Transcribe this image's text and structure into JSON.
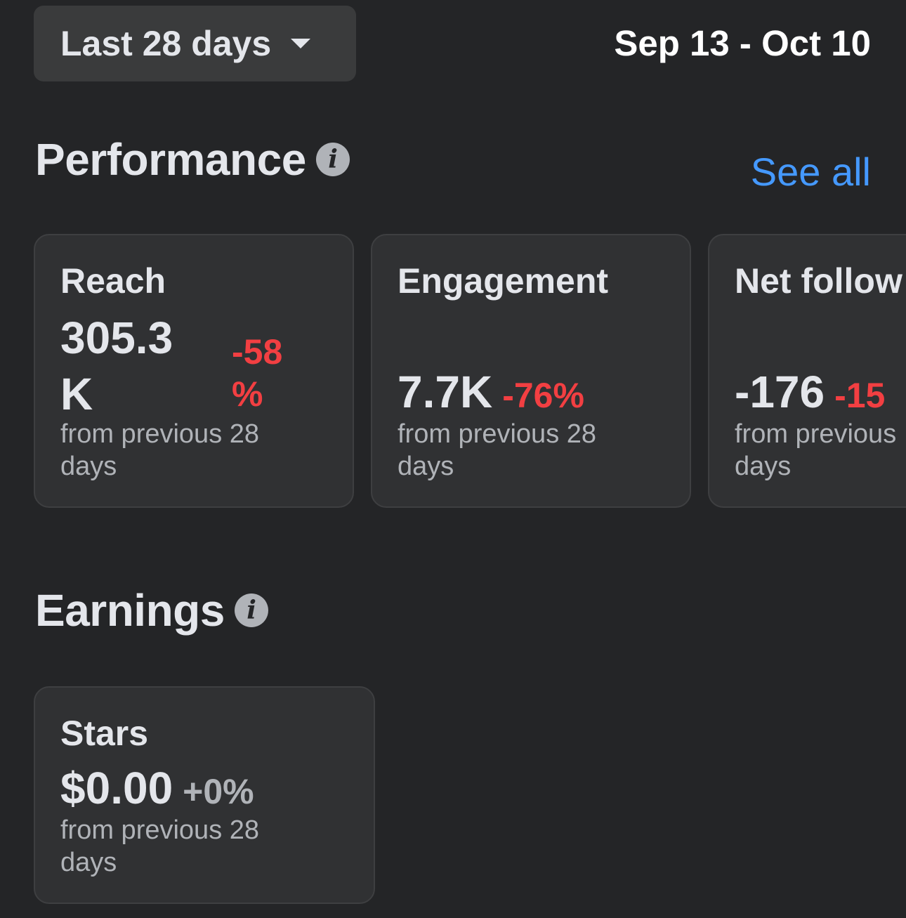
{
  "header": {
    "range_selector": {
      "label": "Last 28 days"
    },
    "date_range": "Sep 13 - Oct 10"
  },
  "performance": {
    "title": "Performance",
    "see_all": "See all",
    "cards": [
      {
        "title": "Reach",
        "value_line1": "305.3",
        "value_line2": "K",
        "change_line1": "-58",
        "change_line2": "%",
        "sub_line1": "from previous 28",
        "sub_line2": "days"
      },
      {
        "title": "Engagement",
        "value": "7.7K",
        "change": "-76%",
        "sub_line1": "from previous 28",
        "sub_line2": "days"
      },
      {
        "title": "Net follow",
        "value": "-176",
        "change": "-15",
        "sub_line1": "from previous",
        "sub_line2": "days"
      }
    ]
  },
  "earnings": {
    "title": "Earnings",
    "cards": [
      {
        "title": "Stars",
        "value": "$0.00",
        "change": "+0%",
        "sub_line1": "from previous 28",
        "sub_line2": "days"
      }
    ]
  },
  "colors": {
    "background": "#242527",
    "card": "#303133",
    "negative": "#f23f42",
    "link": "#4599ff",
    "muted": "#b0b3b8"
  }
}
